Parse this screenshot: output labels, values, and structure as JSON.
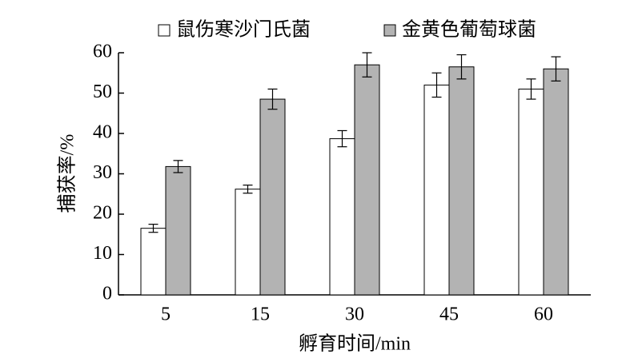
{
  "chart_data": {
    "type": "bar",
    "x_label": "孵育时间/min",
    "y_label": "捕获率/%",
    "categories": [
      "5",
      "15",
      "30",
      "45",
      "60"
    ],
    "series": [
      {
        "name": "鼠伤寒沙门氏菌",
        "color": "#ffffff",
        "values": [
          16.5,
          26.2,
          38.7,
          52,
          51
        ],
        "errors": [
          1,
          1,
          2,
          3,
          2.5
        ]
      },
      {
        "name": "金黄色葡萄球菌",
        "color": "#b3b3b3",
        "values": [
          31.8,
          48.5,
          57,
          56.5,
          56
        ],
        "errors": [
          1.5,
          2.5,
          3,
          3,
          3
        ]
      }
    ],
    "ylim": [
      0,
      60
    ],
    "yticks": [
      0,
      10,
      20,
      30,
      40,
      50,
      60
    ]
  }
}
